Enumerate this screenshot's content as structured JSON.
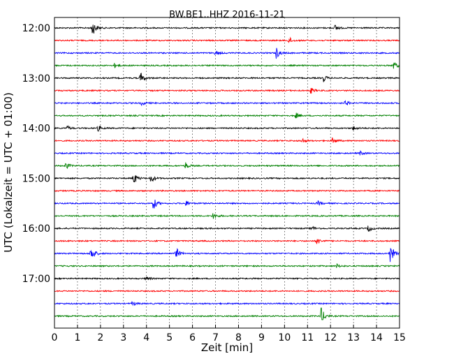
{
  "chart_data": {
    "type": "line",
    "title": "BW.BE1..HHZ 2016-11-21",
    "xlabel": "Zeit  [min]",
    "ylabel": "UTC (Lokalzeit = UTC + 01:00)",
    "xlim": [
      0,
      15
    ],
    "x_ticks": [
      "0",
      "1",
      "2",
      "3",
      "4",
      "5",
      "6",
      "7",
      "8",
      "9",
      "10",
      "11",
      "12",
      "13",
      "14",
      "15"
    ],
    "y_ticks": [
      "12:00",
      "13:00",
      "14:00",
      "15:00",
      "16:00",
      "17:00"
    ],
    "grid": "vertical dotted",
    "trace_colors": [
      "#000000",
      "#ff0000",
      "#0000ff",
      "#008000"
    ],
    "traces": [
      {
        "start": "12:00",
        "color": "#000000",
        "events": [
          {
            "t": 1.65,
            "amp": 12
          },
          {
            "t": 12.2,
            "amp": 4
          }
        ]
      },
      {
        "start": "12:15",
        "color": "#ff0000",
        "events": [
          {
            "t": 10.2,
            "amp": 5
          }
        ]
      },
      {
        "start": "12:30",
        "color": "#0000ff",
        "events": [
          {
            "t": 9.65,
            "amp": 8
          },
          {
            "t": 7.0,
            "amp": 3
          }
        ]
      },
      {
        "start": "12:45",
        "color": "#008000",
        "events": [
          {
            "t": 14.75,
            "amp": 6
          },
          {
            "t": 2.6,
            "amp": 3
          }
        ]
      },
      {
        "start": "13:00",
        "color": "#000000",
        "events": [
          {
            "t": 3.75,
            "amp": 8
          },
          {
            "t": 11.7,
            "amp": 5
          }
        ]
      },
      {
        "start": "13:15",
        "color": "#ff0000",
        "events": [
          {
            "t": 11.15,
            "amp": 4
          }
        ]
      },
      {
        "start": "13:30",
        "color": "#0000ff",
        "events": [
          {
            "t": 12.65,
            "amp": 4
          },
          {
            "t": 3.8,
            "amp": 3
          }
        ]
      },
      {
        "start": "13:45",
        "color": "#008000",
        "events": [
          {
            "t": 10.5,
            "amp": 4
          }
        ]
      },
      {
        "start": "14:00",
        "color": "#000000",
        "events": [
          {
            "t": 1.9,
            "amp": 4
          },
          {
            "t": 0.55,
            "amp": 3
          },
          {
            "t": 13.0,
            "amp": 3
          }
        ]
      },
      {
        "start": "14:15",
        "color": "#ff0000",
        "events": [
          {
            "t": 12.1,
            "amp": 5
          },
          {
            "t": 10.75,
            "amp": 4
          }
        ]
      },
      {
        "start": "14:30",
        "color": "#0000ff",
        "events": [
          {
            "t": 13.3,
            "amp": 3
          }
        ]
      },
      {
        "start": "14:45",
        "color": "#008000",
        "events": [
          {
            "t": 0.5,
            "amp": 5
          },
          {
            "t": 5.7,
            "amp": 5
          }
        ]
      },
      {
        "start": "15:00",
        "color": "#000000",
        "events": [
          {
            "t": 3.45,
            "amp": 9
          },
          {
            "t": 4.2,
            "amp": 6
          }
        ]
      },
      {
        "start": "15:15",
        "color": "#ff0000",
        "events": []
      },
      {
        "start": "15:30",
        "color": "#0000ff",
        "events": [
          {
            "t": 4.3,
            "amp": 9
          },
          {
            "t": 5.7,
            "amp": 4
          },
          {
            "t": 11.45,
            "amp": 3
          }
        ]
      },
      {
        "start": "15:45",
        "color": "#008000",
        "events": [
          {
            "t": 6.9,
            "amp": 5
          }
        ]
      },
      {
        "start": "16:00",
        "color": "#000000",
        "events": [
          {
            "t": 13.65,
            "amp": 5
          },
          {
            "t": 11.2,
            "amp": 3
          }
        ]
      },
      {
        "start": "16:15",
        "color": "#ff0000",
        "events": [
          {
            "t": 11.4,
            "amp": 6
          }
        ]
      },
      {
        "start": "16:30",
        "color": "#0000ff",
        "events": [
          {
            "t": 1.6,
            "amp": 12
          },
          {
            "t": 5.3,
            "amp": 8
          },
          {
            "t": 14.6,
            "amp": 14
          }
        ]
      },
      {
        "start": "16:45",
        "color": "#008000",
        "events": [
          {
            "t": 12.25,
            "amp": 3
          }
        ]
      },
      {
        "start": "17:00",
        "color": "#000000",
        "events": [
          {
            "t": 4.0,
            "amp": 3
          }
        ]
      },
      {
        "start": "17:15",
        "color": "#ff0000",
        "events": []
      },
      {
        "start": "17:30",
        "color": "#0000ff",
        "events": [
          {
            "t": 3.4,
            "amp": 3
          }
        ]
      },
      {
        "start": "17:45",
        "color": "#008000",
        "events": [
          {
            "t": 11.6,
            "amp": 12
          }
        ]
      }
    ]
  }
}
